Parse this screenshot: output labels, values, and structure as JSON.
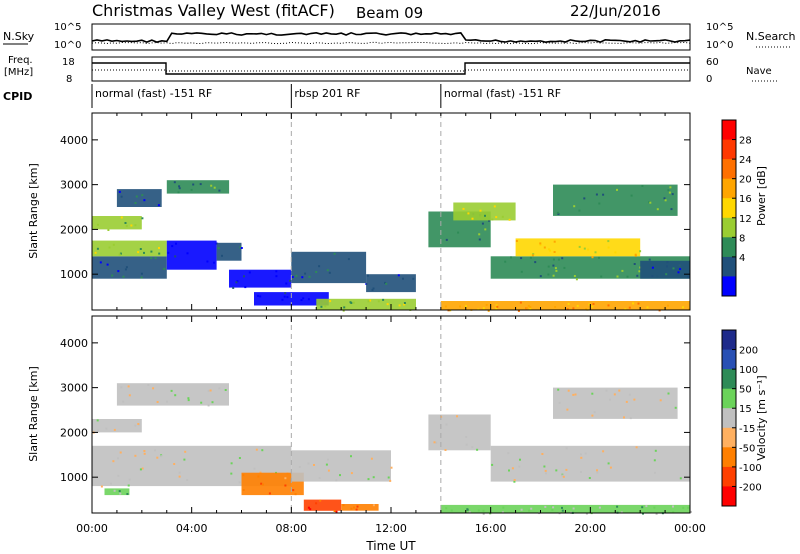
{
  "header": {
    "title": "Christmas Valley West (fitACF)",
    "beam": "Beam 09",
    "date": "22/Jun/2016"
  },
  "nsky_panel": {
    "label": "N.Sky",
    "right_label": "N.Search",
    "left_ticks": [
      "10^5",
      "10^0"
    ],
    "right_ticks": [
      "10^5",
      "10^0"
    ]
  },
  "freq_panel": {
    "label_lines": [
      "Freq.",
      "[MHz]"
    ],
    "right_label": "Nave",
    "left_ticks": [
      "18",
      "8"
    ],
    "right_ticks": [
      "60",
      "0"
    ]
  },
  "cpid": {
    "label": "CPID",
    "segments": [
      {
        "start_hour": 0,
        "end_hour": 8,
        "text": "normal (fast) -151 RF"
      },
      {
        "start_hour": 8,
        "end_hour": 14,
        "text": "rbsp 201 RF"
      },
      {
        "start_hour": 14,
        "end_hour": 24,
        "text": "normal (fast) -151 RF"
      }
    ]
  },
  "x_axis": {
    "label": "Time UT",
    "tick_labels": [
      "00:00",
      "04:00",
      "08:00",
      "12:00",
      "16:00",
      "20:00",
      "00:00"
    ]
  },
  "power_colorbar": {
    "label": "Power [dB]",
    "ticks": [
      "28",
      "24",
      "20",
      "16",
      "12",
      "8",
      "4"
    ],
    "colors": [
      "#ff0000",
      "#ff3800",
      "#ff7000",
      "#ffa500",
      "#ffd700",
      "#9acd32",
      "#2e8b57",
      "#20507a",
      "#0000ff"
    ]
  },
  "velocity_colorbar": {
    "label": "Velocity [m s⁻¹]",
    "ticks": [
      "200",
      "100",
      "50",
      "15",
      "-15",
      "-50",
      "-100",
      "-200"
    ],
    "colors": [
      "#1e2a8a",
      "#2850b4",
      "#2e8b57",
      "#6bd35a",
      "#c0c0c0",
      "#ffb060",
      "#ff7f00",
      "#ff4000",
      "#ff0000"
    ]
  },
  "chart_data": [
    {
      "type": "heatmap",
      "name": "power",
      "ylabel": "Slant Range [km]",
      "xlabel": "",
      "xlim": [
        0,
        24
      ],
      "ylim": [
        200,
        4600
      ],
      "yticks": [
        "1000",
        "2000",
        "3000",
        "4000"
      ],
      "colorbar": "Power [dB]",
      "regions": [
        {
          "t0": 0.0,
          "t1": 3.0,
          "r0": 900,
          "r1": 1400,
          "level": 7
        },
        {
          "t0": 0.0,
          "t1": 3.0,
          "r0": 1400,
          "r1": 1750,
          "level": 5
        },
        {
          "t0": 0.0,
          "t1": 2.0,
          "r0": 2000,
          "r1": 2300,
          "level": 5
        },
        {
          "t0": 1.0,
          "t1": 2.8,
          "r0": 2500,
          "r1": 2900,
          "level": 7
        },
        {
          "t0": 3.0,
          "t1": 5.0,
          "r0": 1100,
          "r1": 1750,
          "level": 8
        },
        {
          "t0": 3.0,
          "t1": 5.5,
          "r0": 2800,
          "r1": 3100,
          "level": 6
        },
        {
          "t0": 5.0,
          "t1": 6.0,
          "r0": 1300,
          "r1": 1700,
          "level": 7
        },
        {
          "t0": 5.5,
          "t1": 8.0,
          "r0": 700,
          "r1": 1100,
          "level": 8
        },
        {
          "t0": 6.5,
          "t1": 9.5,
          "r0": 300,
          "r1": 600,
          "level": 8
        },
        {
          "t0": 8.0,
          "t1": 11.0,
          "r0": 800,
          "r1": 1500,
          "level": 7
        },
        {
          "t0": 11.0,
          "t1": 13.0,
          "r0": 600,
          "r1": 1000,
          "level": 7
        },
        {
          "t0": 9.0,
          "t1": 13.0,
          "r0": 200,
          "r1": 450,
          "level": 5
        },
        {
          "t0": 13.5,
          "t1": 16.0,
          "r0": 1600,
          "r1": 2400,
          "level": 6
        },
        {
          "t0": 14.0,
          "t1": 24.0,
          "r0": 200,
          "r1": 400,
          "level": 3
        },
        {
          "t0": 14.5,
          "t1": 17.0,
          "r0": 2200,
          "r1": 2600,
          "level": 5
        },
        {
          "t0": 16.0,
          "t1": 24.0,
          "r0": 900,
          "r1": 1400,
          "level": 6
        },
        {
          "t0": 17.0,
          "t1": 22.0,
          "r0": 1400,
          "r1": 1800,
          "level": 4
        },
        {
          "t0": 18.5,
          "t1": 23.5,
          "r0": 2300,
          "r1": 3000,
          "level": 6
        },
        {
          "t0": 22.0,
          "t1": 24.0,
          "r0": 900,
          "r1": 1300,
          "level": 7
        }
      ]
    },
    {
      "type": "heatmap",
      "name": "velocity",
      "ylabel": "Slant Range [km]",
      "xlabel": "Time UT",
      "xlim": [
        0,
        24
      ],
      "ylim": [
        200,
        4600
      ],
      "yticks": [
        "1000",
        "2000",
        "3000",
        "4000"
      ],
      "colorbar": "Velocity [m s⁻¹]",
      "regions": [
        {
          "t0": 0.0,
          "t1": 8.0,
          "r0": 800,
          "r1": 1700,
          "level": 4
        },
        {
          "t0": 0.0,
          "t1": 2.0,
          "r0": 2000,
          "r1": 2300,
          "level": 4
        },
        {
          "t0": 1.0,
          "t1": 5.5,
          "r0": 2600,
          "r1": 3100,
          "level": 4
        },
        {
          "t0": 0.5,
          "t1": 1.5,
          "r0": 600,
          "r1": 750,
          "level": 3
        },
        {
          "t0": 6.0,
          "t1": 8.5,
          "r0": 600,
          "r1": 1100,
          "level": 6
        },
        {
          "t0": 8.0,
          "t1": 12.0,
          "r0": 900,
          "r1": 1600,
          "level": 4
        },
        {
          "t0": 8.5,
          "t1": 10.0,
          "r0": 250,
          "r1": 500,
          "level": 7
        },
        {
          "t0": 10.0,
          "t1": 11.5,
          "r0": 250,
          "r1": 400,
          "level": 6
        },
        {
          "t0": 13.5,
          "t1": 16.0,
          "r0": 1600,
          "r1": 2400,
          "level": 4
        },
        {
          "t0": 14.0,
          "t1": 24.0,
          "r0": 200,
          "r1": 380,
          "level": 3
        },
        {
          "t0": 16.0,
          "t1": 24.0,
          "r0": 900,
          "r1": 1700,
          "level": 4
        },
        {
          "t0": 18.5,
          "t1": 23.5,
          "r0": 2300,
          "r1": 3000,
          "level": 4
        }
      ]
    }
  ]
}
